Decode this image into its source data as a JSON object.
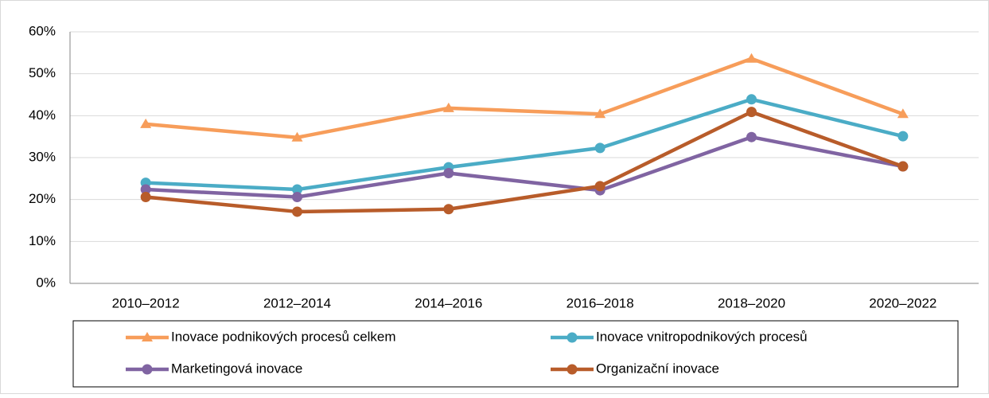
{
  "chart_data": {
    "type": "line",
    "categories": [
      "2010–2012",
      "2012–2014",
      "2014–2016",
      "2016–2018",
      "2018–2020",
      "2020–2022"
    ],
    "series": [
      {
        "name": "Inovace podnikových procesů celkem",
        "color": "#f79d5a",
        "marker": "triangle",
        "values": [
          38,
          34.8,
          41.8,
          40.4,
          53.6,
          40.4
        ]
      },
      {
        "name": "Inovace vnitropodnikových procesů",
        "color": "#4bacc6",
        "marker": "circle",
        "values": [
          24,
          22.4,
          27.7,
          32.3,
          43.9,
          35.1
        ]
      },
      {
        "name": "Marketingová inovace",
        "color": "#8064a2",
        "marker": "circle",
        "values": [
          22.4,
          20.6,
          26.3,
          22.2,
          34.9,
          27.9
        ]
      },
      {
        "name": "Organizační inovace",
        "color": "#b85c2a",
        "marker": "circle",
        "values": [
          20.6,
          17.1,
          17.7,
          23.2,
          40.9,
          27.9
        ]
      }
    ],
    "ylim": [
      0,
      60
    ],
    "yticks": [
      {
        "value": 0,
        "label": "0%"
      },
      {
        "value": 10,
        "label": "10%"
      },
      {
        "value": 20,
        "label": "20%"
      },
      {
        "value": 30,
        "label": "30%"
      },
      {
        "value": 40,
        "label": "40%"
      },
      {
        "value": 50,
        "label": "50%"
      },
      {
        "value": 60,
        "label": "60%"
      }
    ],
    "grid": true,
    "legend": "bottom"
  }
}
